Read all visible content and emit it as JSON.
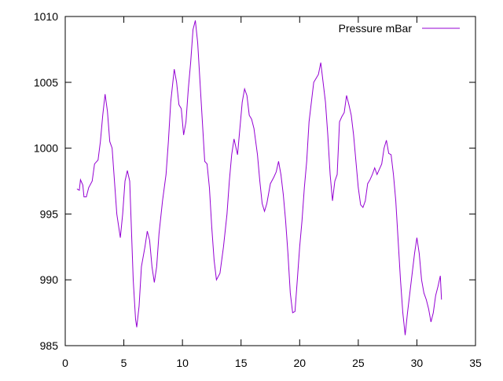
{
  "chart_data": {
    "type": "line",
    "x": [
      1.0,
      1.2,
      1.3,
      1.5,
      1.6,
      1.8,
      2.0,
      2.3,
      2.5,
      2.8,
      3.0,
      3.2,
      3.4,
      3.6,
      3.8,
      4.0,
      4.2,
      4.4,
      4.7,
      4.9,
      5.1,
      5.3,
      5.5,
      5.6,
      5.8,
      6.0,
      6.1,
      6.3,
      6.5,
      6.8,
      7.0,
      7.2,
      7.4,
      7.6,
      7.8,
      8.0,
      8.3,
      8.6,
      8.8,
      9.0,
      9.3,
      9.5,
      9.7,
      9.9,
      10.1,
      10.3,
      10.5,
      10.7,
      10.9,
      11.1,
      11.3,
      11.5,
      11.7,
      11.9,
      12.1,
      12.3,
      12.5,
      12.7,
      12.9,
      13.2,
      13.5,
      13.8,
      14.0,
      14.2,
      14.4,
      14.7,
      14.9,
      15.1,
      15.3,
      15.5,
      15.7,
      15.9,
      16.1,
      16.4,
      16.6,
      16.8,
      17.0,
      17.2,
      17.5,
      17.8,
      18.0,
      18.2,
      18.4,
      18.6,
      18.8,
      19.0,
      19.2,
      19.4,
      19.6,
      19.8,
      20.0,
      20.2,
      20.4,
      20.6,
      20.8,
      21.0,
      21.2,
      21.4,
      21.6,
      21.8,
      22.0,
      22.2,
      22.4,
      22.6,
      22.8,
      23.0,
      23.2,
      23.4,
      23.6,
      23.8,
      24.0,
      24.2,
      24.4,
      24.6,
      24.8,
      25.0,
      25.2,
      25.4,
      25.6,
      25.8,
      26.0,
      26.2,
      26.4,
      26.6,
      26.8,
      27.0,
      27.2,
      27.4,
      27.6,
      27.8,
      28.0,
      28.2,
      28.4,
      28.6,
      28.8,
      29.0,
      29.2,
      29.4,
      29.6,
      29.8,
      30.0,
      30.2,
      30.4,
      30.6,
      30.8,
      31.0,
      31.2,
      31.4,
      31.6,
      31.8,
      32.0,
      32.1
    ],
    "series": [
      {
        "name": "Pressure mBar",
        "color": "#9400d3",
        "values": [
          996.9,
          996.8,
          997.6,
          997.2,
          996.3,
          996.3,
          997.0,
          997.5,
          998.8,
          999.1,
          1000.5,
          1002.5,
          1004.1,
          1002.8,
          1000.5,
          1000.0,
          997.5,
          995.0,
          993.2,
          995.0,
          997.5,
          998.3,
          997.5,
          995.0,
          990.0,
          987.0,
          986.4,
          988.0,
          991.0,
          992.5,
          993.7,
          993.0,
          991.0,
          989.8,
          991.0,
          993.5,
          996.0,
          998.0,
          1000.5,
          1003.5,
          1006.0,
          1005.0,
          1003.3,
          1003.0,
          1001.0,
          1002.0,
          1004.5,
          1006.5,
          1009.0,
          1009.7,
          1008.0,
          1005.0,
          1002.0,
          999.0,
          998.8,
          997.0,
          994.0,
          991.5,
          990.0,
          990.5,
          992.5,
          995.0,
          997.5,
          999.5,
          1000.7,
          999.5,
          1001.5,
          1003.5,
          1004.5,
          1004.0,
          1002.5,
          1002.2,
          1001.5,
          999.5,
          997.5,
          995.8,
          995.2,
          995.8,
          997.3,
          997.8,
          998.2,
          999.0,
          998.0,
          996.5,
          994.5,
          992.0,
          989.0,
          987.5,
          987.6,
          990.0,
          992.5,
          994.5,
          997.0,
          999.0,
          1002.0,
          1003.5,
          1005.0,
          1005.3,
          1005.6,
          1006.5,
          1005.0,
          1003.5,
          1001.0,
          998.0,
          996.0,
          997.5,
          998.0,
          1002.0,
          1002.4,
          1002.7,
          1004.0,
          1003.3,
          1002.5,
          1001.0,
          999.0,
          997.0,
          995.7,
          995.5,
          996.0,
          997.3,
          997.6,
          998.0,
          998.5,
          998.0,
          998.4,
          998.8,
          1000.0,
          1000.6,
          999.6,
          999.5,
          998.0,
          996.0,
          993.0,
          990.0,
          987.5,
          985.8,
          987.5,
          989.0,
          990.5,
          992.0,
          993.2,
          992.0,
          990.0,
          989.0,
          988.5,
          987.8,
          986.8,
          987.5,
          988.8,
          989.5,
          990.3,
          988.5
        ]
      }
    ],
    "xlim": [
      0,
      35
    ],
    "xticks": [
      0,
      5,
      10,
      15,
      20,
      25,
      30,
      35
    ],
    "ylim": [
      985,
      1010
    ],
    "yticks": [
      985,
      990,
      995,
      1000,
      1005,
      1010
    ],
    "grid": false,
    "legend": "top right"
  }
}
